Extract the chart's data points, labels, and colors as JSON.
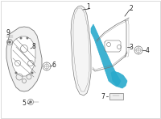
{
  "bg_color": "#ffffff",
  "border_color": "#cccccc",
  "part_color": "#777777",
  "highlight_color": "#29aacc",
  "label_color": "#222222",
  "fig_width": 2.0,
  "fig_height": 1.47,
  "dpi": 100
}
